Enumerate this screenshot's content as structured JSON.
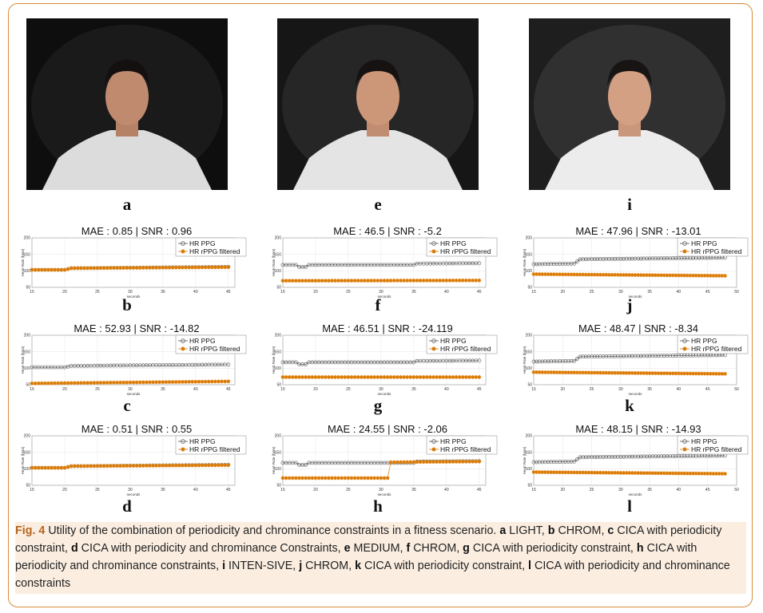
{
  "figure": {
    "panels": [
      {
        "letter": "a",
        "kind": "photo",
        "lighting": "low"
      },
      {
        "letter": "e",
        "kind": "photo",
        "lighting": "medium"
      },
      {
        "letter": "i",
        "kind": "photo",
        "lighting": "intense"
      }
    ],
    "caption": {
      "fig_label": "Fig. 4",
      "lead": "Utility of the combination of periodicity and chrominance constraints in a fitness scenario.",
      "items": [
        {
          "letter": "a",
          "text": "LIGHT,"
        },
        {
          "letter": "b",
          "text": "CHROM,"
        },
        {
          "letter": "c",
          "text": "CICA with periodicity constraint,"
        },
        {
          "letter": "d",
          "text": "CICA with periodicity and chrominance Constraints,"
        },
        {
          "letter": "e",
          "text": "MEDIUM,"
        },
        {
          "letter": "f",
          "text": "CHROM,"
        },
        {
          "letter": "g",
          "text": "CICA with periodicity constraint,"
        },
        {
          "letter": "h",
          "text": "CICA with periodicity and chrominance constraints,"
        },
        {
          "letter": "i",
          "text": "INTEN-SIVE,"
        },
        {
          "letter": "j",
          "text": "CHROM,"
        },
        {
          "letter": "k",
          "text": "CICA with periodicity constraint,"
        },
        {
          "letter": "l",
          "text": "CICA with periodicity and chrominance constraints"
        }
      ]
    }
  },
  "chart_data": [
    {
      "letter": "b",
      "type": "line",
      "title": "MAE : 0.85 | SNR : 0.96",
      "xlabel": "seconds",
      "ylabel": "Heart Rate (bpm)",
      "xlim": [
        15,
        46
      ],
      "ylim": [
        50,
        200
      ],
      "xticks": [
        15,
        20,
        25,
        30,
        35,
        40,
        45
      ],
      "yticks": [
        50,
        100,
        150,
        200
      ],
      "legend": [
        "HR PPG",
        "HR rPPG filtered"
      ],
      "legend_position": "top-right",
      "series": [
        {
          "name": "HR PPG",
          "color": "#555555",
          "marker": "circle-open",
          "x": [
            15,
            20,
            21,
            45
          ],
          "y": [
            103,
            103,
            108,
            112
          ]
        },
        {
          "name": "HR rPPG filtered",
          "color": "#d97c0a",
          "marker": "star",
          "x": [
            15,
            20,
            21,
            45
          ],
          "y": [
            103,
            103,
            108,
            111
          ]
        }
      ]
    },
    {
      "letter": "c",
      "type": "line",
      "title": "MAE : 52.93 | SNR : -14.82",
      "xlabel": "seconds",
      "ylabel": "Heart Rate (bpm)",
      "xlim": [
        15,
        46
      ],
      "ylim": [
        50,
        200
      ],
      "xticks": [
        15,
        20,
        25,
        30,
        35,
        40,
        45
      ],
      "yticks": [
        50,
        100,
        150,
        200
      ],
      "legend": [
        "HR PPG",
        "HR rPPG filtered"
      ],
      "legend_position": "top-right",
      "series": [
        {
          "name": "HR PPG",
          "color": "#555555",
          "marker": "circle-open",
          "x": [
            15,
            20,
            21,
            45
          ],
          "y": [
            103,
            103,
            107,
            111
          ]
        },
        {
          "name": "HR rPPG filtered",
          "color": "#d97c0a",
          "marker": "star",
          "x": [
            15,
            45
          ],
          "y": [
            54,
            60
          ]
        }
      ]
    },
    {
      "letter": "d",
      "type": "line",
      "title": "MAE : 0.51 | SNR : 0.55",
      "xlabel": "seconds",
      "ylabel": "Heart Rate (bpm)",
      "xlim": [
        15,
        46
      ],
      "ylim": [
        50,
        200
      ],
      "xticks": [
        15,
        20,
        25,
        30,
        35,
        40,
        45
      ],
      "yticks": [
        50,
        100,
        150,
        200
      ],
      "legend": [
        "HR PPG",
        "HR rPPG filtered"
      ],
      "legend_position": "top-right",
      "series": [
        {
          "name": "HR PPG",
          "color": "#555555",
          "marker": "circle-open",
          "x": [
            15,
            20,
            21,
            45
          ],
          "y": [
            103,
            103,
            108,
            112
          ]
        },
        {
          "name": "HR rPPG filtered",
          "color": "#d97c0a",
          "marker": "star",
          "x": [
            15,
            20,
            21,
            45
          ],
          "y": [
            103,
            103,
            108,
            111
          ]
        }
      ]
    },
    {
      "letter": "f",
      "type": "line",
      "title": "MAE : 46.5 | SNR : -5.2",
      "xlabel": "seconds",
      "ylabel": "Heart Rate (bpm)",
      "xlim": [
        15,
        46
      ],
      "ylim": [
        50,
        200
      ],
      "xticks": [
        15,
        20,
        25,
        30,
        35,
        40,
        45
      ],
      "yticks": [
        50,
        100,
        150,
        200
      ],
      "legend": [
        "HR PPG",
        "HR rPPG filtered"
      ],
      "legend_position": "top-right",
      "series": [
        {
          "name": "HR PPG",
          "color": "#555555",
          "marker": "circle-open",
          "x": [
            15,
            17,
            17.5,
            18.5,
            19,
            35,
            35.5,
            45
          ],
          "y": [
            118,
            118,
            112,
            112,
            118,
            118,
            122,
            123
          ]
        },
        {
          "name": "HR rPPG filtered",
          "color": "#d97c0a",
          "marker": "star",
          "x": [
            15,
            45
          ],
          "y": [
            70,
            71
          ]
        }
      ]
    },
    {
      "letter": "g",
      "type": "line",
      "title": "MAE : 46.51 | SNR : -24.119",
      "xlabel": "seconds",
      "ylabel": "Heart Rate (bpm)",
      "xlim": [
        15,
        46
      ],
      "ylim": [
        50,
        200
      ],
      "xticks": [
        15,
        20,
        25,
        30,
        35,
        40,
        45
      ],
      "yticks": [
        50,
        100,
        150,
        200
      ],
      "legend": [
        "HR PPG",
        "HR rPPG filtered"
      ],
      "legend_position": "top-right",
      "series": [
        {
          "name": "HR PPG",
          "color": "#555555",
          "marker": "circle-open",
          "x": [
            15,
            17,
            17.5,
            18.5,
            19,
            35,
            35.5,
            45
          ],
          "y": [
            118,
            118,
            112,
            112,
            118,
            118,
            122,
            123
          ]
        },
        {
          "name": "HR rPPG filtered",
          "color": "#d97c0a",
          "marker": "star",
          "x": [
            15,
            45
          ],
          "y": [
            73,
            73
          ]
        }
      ]
    },
    {
      "letter": "h",
      "type": "line",
      "title": "MAE : 24.55 | SNR : -2.06",
      "xlabel": "seconds",
      "ylabel": "Heart Rate (bpm)",
      "xlim": [
        15,
        46
      ],
      "ylim": [
        50,
        200
      ],
      "xticks": [
        15,
        20,
        25,
        30,
        35,
        40,
        45
      ],
      "yticks": [
        50,
        100,
        150,
        200
      ],
      "legend": [
        "HR PPG",
        "HR rPPG filtered"
      ],
      "legend_position": "top-right",
      "series": [
        {
          "name": "HR PPG",
          "color": "#555555",
          "marker": "circle-open",
          "x": [
            15,
            17,
            17.5,
            18.5,
            19,
            35,
            35.5,
            45
          ],
          "y": [
            118,
            118,
            112,
            112,
            118,
            118,
            122,
            123
          ]
        },
        {
          "name": "HR rPPG filtered",
          "color": "#d97c0a",
          "marker": "star",
          "x": [
            15,
            31,
            31.5,
            45
          ],
          "y": [
            72,
            72,
            120,
            122
          ]
        }
      ]
    },
    {
      "letter": "j",
      "type": "line",
      "title": "MAE : 47.96 | SNR : -13.01",
      "xlabel": "seconds",
      "ylabel": "Heart Rate (bpm)",
      "xlim": [
        15,
        50
      ],
      "ylim": [
        50,
        200
      ],
      "xticks": [
        15,
        20,
        25,
        30,
        35,
        40,
        45,
        50
      ],
      "yticks": [
        50,
        100,
        150,
        200
      ],
      "legend": [
        "HR PPG",
        "HR rPPG filtered"
      ],
      "legend_position": "top-right",
      "series": [
        {
          "name": "HR PPG",
          "color": "#555555",
          "marker": "circle-open",
          "x": [
            15,
            22,
            23,
            48
          ],
          "y": [
            120,
            122,
            135,
            140
          ]
        },
        {
          "name": "HR rPPG filtered",
          "color": "#d97c0a",
          "marker": "star",
          "x": [
            15,
            48
          ],
          "y": [
            90,
            85
          ]
        }
      ]
    },
    {
      "letter": "k",
      "type": "line",
      "title": "MAE : 48.47 | SNR : -8.34",
      "xlabel": "seconds",
      "ylabel": "Heart Rate (bpm)",
      "xlim": [
        15,
        50
      ],
      "ylim": [
        50,
        200
      ],
      "xticks": [
        15,
        20,
        25,
        30,
        35,
        40,
        45,
        50
      ],
      "yticks": [
        50,
        100,
        150,
        200
      ],
      "legend": [
        "HR PPG",
        "HR rPPG filtered"
      ],
      "legend_position": "top-right",
      "series": [
        {
          "name": "HR PPG",
          "color": "#555555",
          "marker": "circle-open",
          "x": [
            15,
            22,
            23,
            48
          ],
          "y": [
            120,
            122,
            135,
            140
          ]
        },
        {
          "name": "HR rPPG filtered",
          "color": "#d97c0a",
          "marker": "star",
          "x": [
            15,
            48
          ],
          "y": [
            88,
            83
          ]
        }
      ]
    },
    {
      "letter": "l",
      "type": "line",
      "title": "MAE : 48.15 | SNR : -14.93",
      "xlabel": "seconds",
      "ylabel": "Heart Rate (bpm)",
      "xlim": [
        15,
        50
      ],
      "ylim": [
        50,
        200
      ],
      "xticks": [
        15,
        20,
        25,
        30,
        35,
        40,
        45,
        50
      ],
      "yticks": [
        50,
        100,
        150,
        200
      ],
      "legend": [
        "HR PPG",
        "HR rPPG filtered"
      ],
      "legend_position": "top-right",
      "series": [
        {
          "name": "HR PPG",
          "color": "#555555",
          "marker": "circle-open",
          "x": [
            15,
            22,
            23,
            48
          ],
          "y": [
            120,
            122,
            135,
            140
          ]
        },
        {
          "name": "HR rPPG filtered",
          "color": "#d97c0a",
          "marker": "star",
          "x": [
            15,
            48
          ],
          "y": [
            90,
            85
          ]
        }
      ]
    }
  ]
}
